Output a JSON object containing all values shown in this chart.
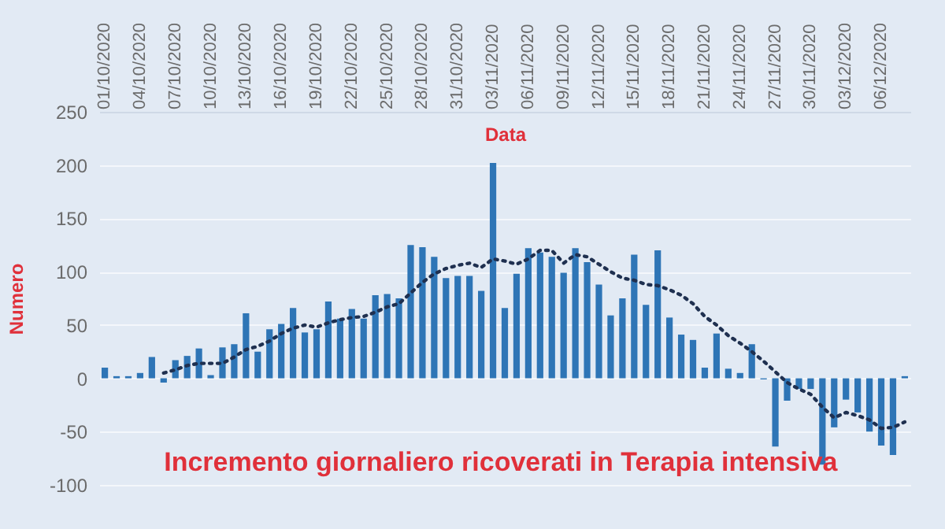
{
  "chart_data": {
    "type": "bar",
    "xlabel": "Data",
    "ylabel": "Numero",
    "annotations": [
      "Incremento  giornaliero ricoverati in Terapia intensiva"
    ],
    "categories": [
      "01/10/2020",
      null,
      null,
      "04/10/2020",
      null,
      null,
      "07/10/2020",
      null,
      null,
      "10/10/2020",
      null,
      null,
      "13/10/2020",
      null,
      null,
      "16/10/2020",
      null,
      null,
      "19/10/2020",
      null,
      null,
      "22/10/2020",
      null,
      null,
      "25/10/2020",
      null,
      null,
      "28/10/2020",
      null,
      null,
      "31/10/2020",
      null,
      null,
      "03/11/2020",
      null,
      null,
      "06/11/2020",
      null,
      null,
      "09/11/2020",
      null,
      null,
      "12/11/2020",
      null,
      null,
      "15/11/2020",
      null,
      null,
      "18/11/2020",
      null,
      null,
      "21/11/2020",
      null,
      null,
      "24/11/2020",
      null,
      null,
      "27/11/2020",
      null,
      null,
      "30/11/2020",
      null,
      null,
      "03/12/2020",
      null,
      null,
      "06/12/2020",
      null,
      null
    ],
    "series": [
      {
        "color": "#2e75b6",
        "values": [
          10,
          2,
          2,
          5,
          20,
          -4,
          17,
          21,
          28,
          3,
          29,
          32,
          61,
          25,
          46,
          51,
          66,
          43,
          46,
          72,
          56,
          65,
          56,
          78,
          79,
          75,
          125,
          123,
          114,
          94,
          96,
          96,
          82,
          202,
          66,
          98,
          122,
          118,
          114,
          99,
          122,
          109,
          88,
          59,
          75,
          116,
          69,
          120,
          57,
          41,
          36,
          10,
          42,
          9,
          5,
          32,
          -1,
          -64,
          -21,
          -10,
          -10,
          -81,
          -46,
          -20,
          -32,
          -50,
          -63,
          -72,
          2
        ]
      },
      {
        "type": "line",
        "color": "#1f3050",
        "line_style": "dotted",
        "values": [
          null,
          null,
          null,
          null,
          null,
          5,
          8,
          12,
          14,
          14,
          14,
          20,
          27,
          30,
          35,
          42,
          47,
          50,
          48,
          52,
          55,
          57,
          58,
          62,
          67,
          70,
          80,
          90,
          98,
          103,
          106,
          108,
          104,
          112,
          110,
          107,
          112,
          120,
          120,
          108,
          116,
          114,
          107,
          100,
          94,
          92,
          88,
          87,
          83,
          78,
          70,
          58,
          50,
          40,
          33,
          25,
          16,
          6,
          -4,
          -10,
          -15,
          -27,
          -37,
          -32,
          -35,
          -39,
          -47,
          -46,
          -41
        ]
      }
    ],
    "ylim": [
      -100,
      250
    ],
    "yticks": [
      -100,
      -50,
      0,
      50,
      100,
      150,
      200,
      250
    ],
    "grid": "y"
  }
}
